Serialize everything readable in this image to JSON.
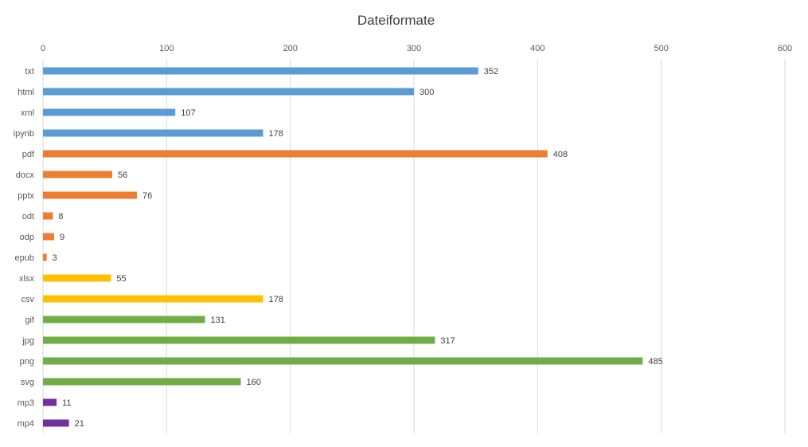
{
  "chart_data": {
    "type": "bar",
    "orientation": "horizontal",
    "title": "Dateiformate",
    "xlabel": "",
    "ylabel": "",
    "xlim": [
      0,
      600
    ],
    "x_ticks": [
      0,
      100,
      200,
      300,
      400,
      500,
      600
    ],
    "x_axis_position": "top",
    "grid": true,
    "legend": "none",
    "data_labels": true,
    "categories": [
      "txt",
      "html",
      "xml",
      "ipynb",
      "pdf",
      "docx",
      "pptx",
      "odt",
      "odp",
      "epub",
      "xlsx",
      "csv",
      "gif",
      "jpg",
      "png",
      "svg",
      "mp3",
      "mp4"
    ],
    "values": [
      352,
      300,
      107,
      178,
      408,
      56,
      76,
      8,
      9,
      3,
      55,
      178,
      131,
      317,
      485,
      160,
      11,
      21
    ],
    "colors": [
      "#5b9bd5",
      "#5b9bd5",
      "#5b9bd5",
      "#5b9bd5",
      "#ed7d31",
      "#ed7d31",
      "#ed7d31",
      "#ed7d31",
      "#ed7d31",
      "#ed7d31",
      "#ffc000",
      "#ffc000",
      "#70ad47",
      "#70ad47",
      "#70ad47",
      "#70ad47",
      "#7030a0",
      "#7030a0"
    ]
  }
}
